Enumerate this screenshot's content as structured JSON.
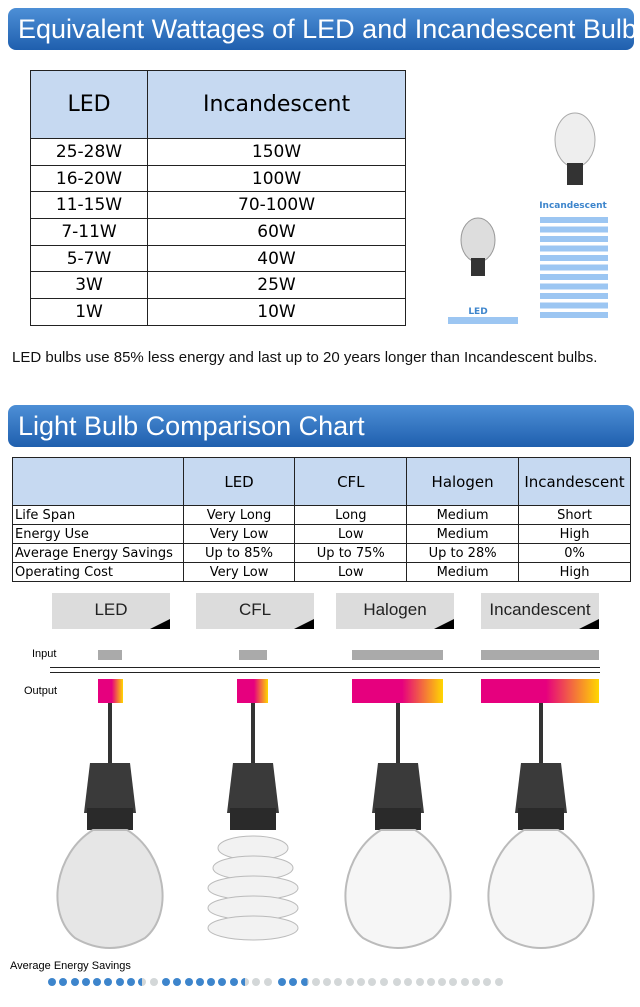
{
  "section1": {
    "title": "Equivalent Wattages of LED and Incandescent Bulbs",
    "headers": [
      "LED",
      "Incandescent"
    ],
    "rows": [
      [
        "25-28W",
        "150W"
      ],
      [
        "16-20W",
        "100W"
      ],
      [
        "11-15W",
        "70-100W"
      ],
      [
        "7-11W",
        "60W"
      ],
      [
        "5-7W",
        "40W"
      ],
      [
        "3W",
        "25W"
      ],
      [
        "1W",
        "10W"
      ]
    ],
    "illustration": {
      "led_label": "LED",
      "incandescent_label": "Incandescent"
    },
    "description": "LED bulbs use 85% less energy and last up to 20 years longer than Incandescent bulbs."
  },
  "section2": {
    "title": "Light Bulb Comparison Chart",
    "headers": [
      "",
      "LED",
      "CFL",
      "Halogen",
      "Incandescent"
    ],
    "rows": [
      [
        "Life Span",
        "Very Long",
        "Long",
        "Medium",
        "Short"
      ],
      [
        "Energy Use",
        "Very Low",
        "Low",
        "Medium",
        "High"
      ],
      [
        "Average Energy Savings",
        "Up to 85%",
        "Up to 75%",
        "Up to 28%",
        "0%"
      ],
      [
        "Operating Cost",
        "Very Low",
        "Low",
        "Medium",
        "High"
      ]
    ]
  },
  "visual": {
    "bulbs": [
      "LED",
      "CFL",
      "Halogen",
      "Incandescent"
    ],
    "input_label": "Input",
    "output_label": "Output",
    "savings_label": "Average Energy Savings",
    "savings_percent": [
      85,
      75,
      28,
      0
    ]
  },
  "colors": {
    "header_blue": "#2b6fbf",
    "table_header": "#c6d9f1",
    "dot_on": "#3d85cc",
    "dot_off": "#d3d7d8",
    "output_start": "#e6007e",
    "output_end": "#ffd700"
  }
}
